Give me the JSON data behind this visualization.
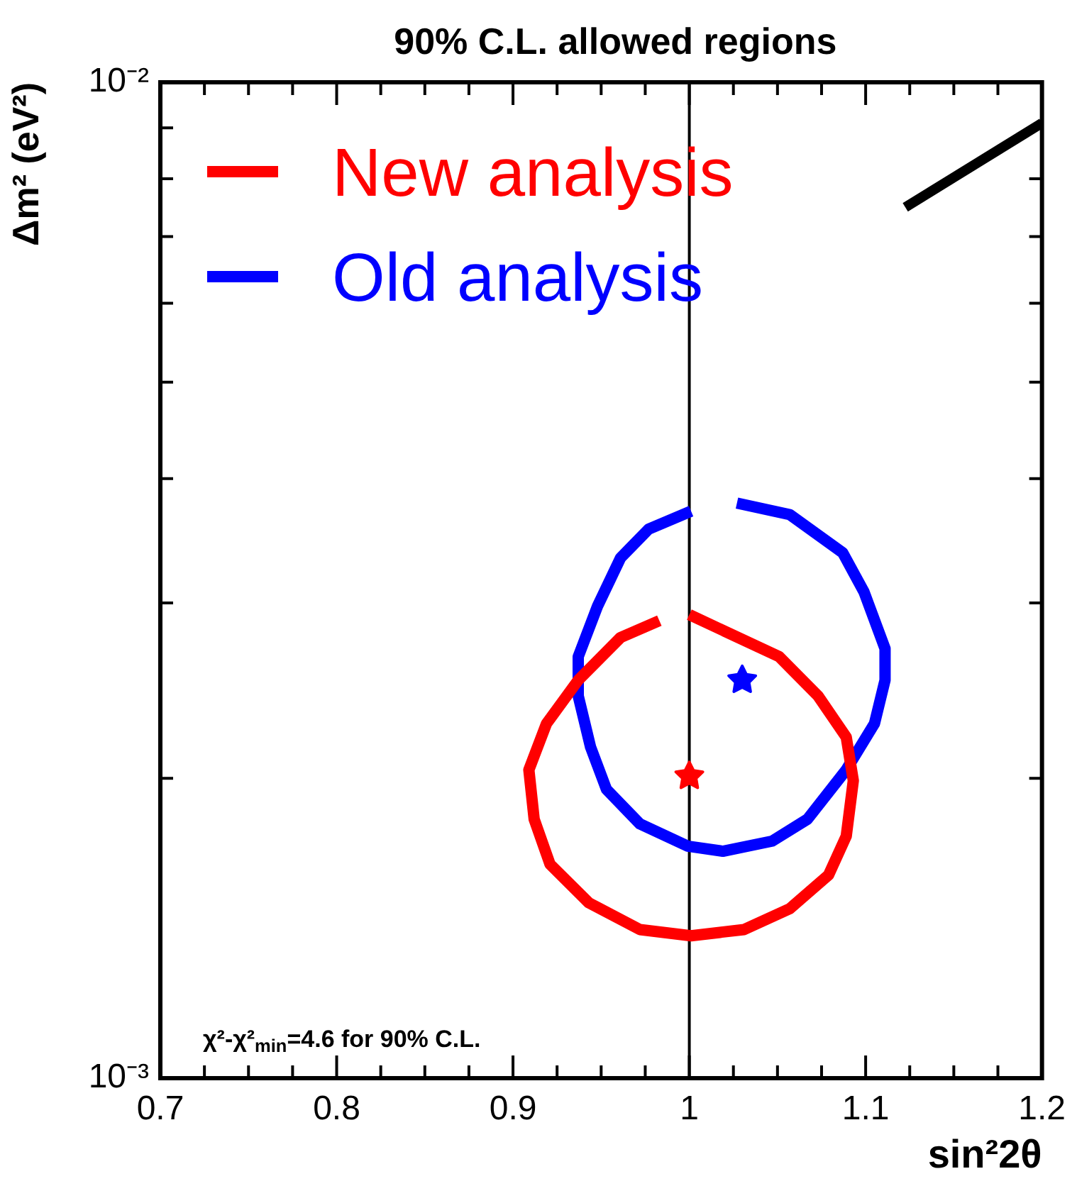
{
  "chart_data": {
    "type": "line",
    "title": "90% C.L. allowed regions",
    "xlabel": "sin²2θ",
    "ylabel": "Δm² (eV²)",
    "log": "y",
    "grid": false,
    "legend": "top left",
    "xlim": [
      0.7,
      1.2
    ],
    "xticks": [
      0.7,
      {
        "value": 0.725,
        "label": null
      },
      {
        "value": 0.75,
        "label": null
      },
      {
        "value": 0.775,
        "label": null
      },
      0.8,
      {
        "value": 0.825,
        "label": null
      },
      {
        "value": 0.85,
        "label": null
      },
      {
        "value": 0.875,
        "label": null
      },
      0.9,
      {
        "value": 0.925,
        "label": null
      },
      {
        "value": 0.95,
        "label": null
      },
      {
        "value": 0.975,
        "label": null
      },
      1,
      {
        "value": 1.025,
        "label": null
      },
      {
        "value": 1.05,
        "label": null
      },
      {
        "value": 1.075,
        "label": null
      },
      1.1,
      {
        "value": 1.125,
        "label": null
      },
      {
        "value": 1.15,
        "label": null
      },
      {
        "value": 1.175,
        "label": null
      },
      1.2
    ],
    "ylim": [
      0.001,
      0.01
    ],
    "yticks": [
      {
        "value": 0.001,
        "label": "10⁻³"
      },
      {
        "value": 0.002,
        "label": null
      },
      {
        "value": 0.003,
        "label": null
      },
      {
        "value": 0.004,
        "label": null
      },
      {
        "value": 0.005,
        "label": null
      },
      {
        "value": 0.006,
        "label": null
      },
      {
        "value": 0.007,
        "label": null
      },
      {
        "value": 0.008,
        "label": null
      },
      {
        "value": 0.009,
        "label": null
      },
      {
        "value": 0.01,
        "label": "10⁻²"
      }
    ],
    "ref_lines": [
      {
        "axis": "x",
        "value": 1,
        "color": "#000000",
        "line_style": "solid"
      }
    ],
    "annotations": [
      "χ²-χ²$_{min}$=4.6 for 90% C.L."
    ],
    "series": [
      {
        "name": "New analysis",
        "type": "line",
        "color": "#ff0000",
        "marker": "none",
        "x": [
          1.0,
          1.051,
          1.073,
          1.089,
          1.093,
          1.089,
          1.079,
          1.057,
          1.031,
          1.001,
          0.972,
          0.943,
          0.921,
          0.912,
          0.909,
          0.919,
          0.937,
          0.961,
          0.983
        ],
        "values": [
          0.00292,
          0.00265,
          0.00242,
          0.0022,
          0.00199,
          0.00175,
          0.0016,
          0.00148,
          0.00141,
          0.00139,
          0.00141,
          0.0015,
          0.00164,
          0.00182,
          0.00204,
          0.00227,
          0.00251,
          0.00277,
          0.00288
        ]
      },
      {
        "name": "Old analysis",
        "type": "line",
        "color": "#0000ff",
        "marker": "none",
        "x": [
          1.027,
          1.057,
          1.087,
          1.099,
          1.111,
          1.111,
          1.105,
          1.089,
          1.067,
          1.047,
          1.019,
          0.999,
          0.972,
          0.953,
          0.944,
          0.937,
          0.937,
          0.948,
          0.961,
          0.977,
          1.001
        ],
        "values": [
          0.00378,
          0.00368,
          0.00337,
          0.00308,
          0.0027,
          0.00251,
          0.00227,
          0.00204,
          0.00182,
          0.00173,
          0.00169,
          0.00171,
          0.0018,
          0.00195,
          0.00215,
          0.00242,
          0.00265,
          0.00298,
          0.00333,
          0.00356,
          0.00371
        ]
      },
      {
        "type": "scatter",
        "color": "#ff0000",
        "marker": "star",
        "x": [
          1.0
        ],
        "values": [
          0.00201
        ]
      },
      {
        "type": "scatter",
        "color": "#0000ff",
        "marker": "star",
        "x": [
          1.03
        ],
        "values": [
          0.00251
        ]
      },
      {
        "type": "line",
        "color": "#000000",
        "marker": "none",
        "x": [
          1.1225,
          1.2
        ],
        "values": [
          0.00749,
          0.0091
        ]
      }
    ]
  }
}
